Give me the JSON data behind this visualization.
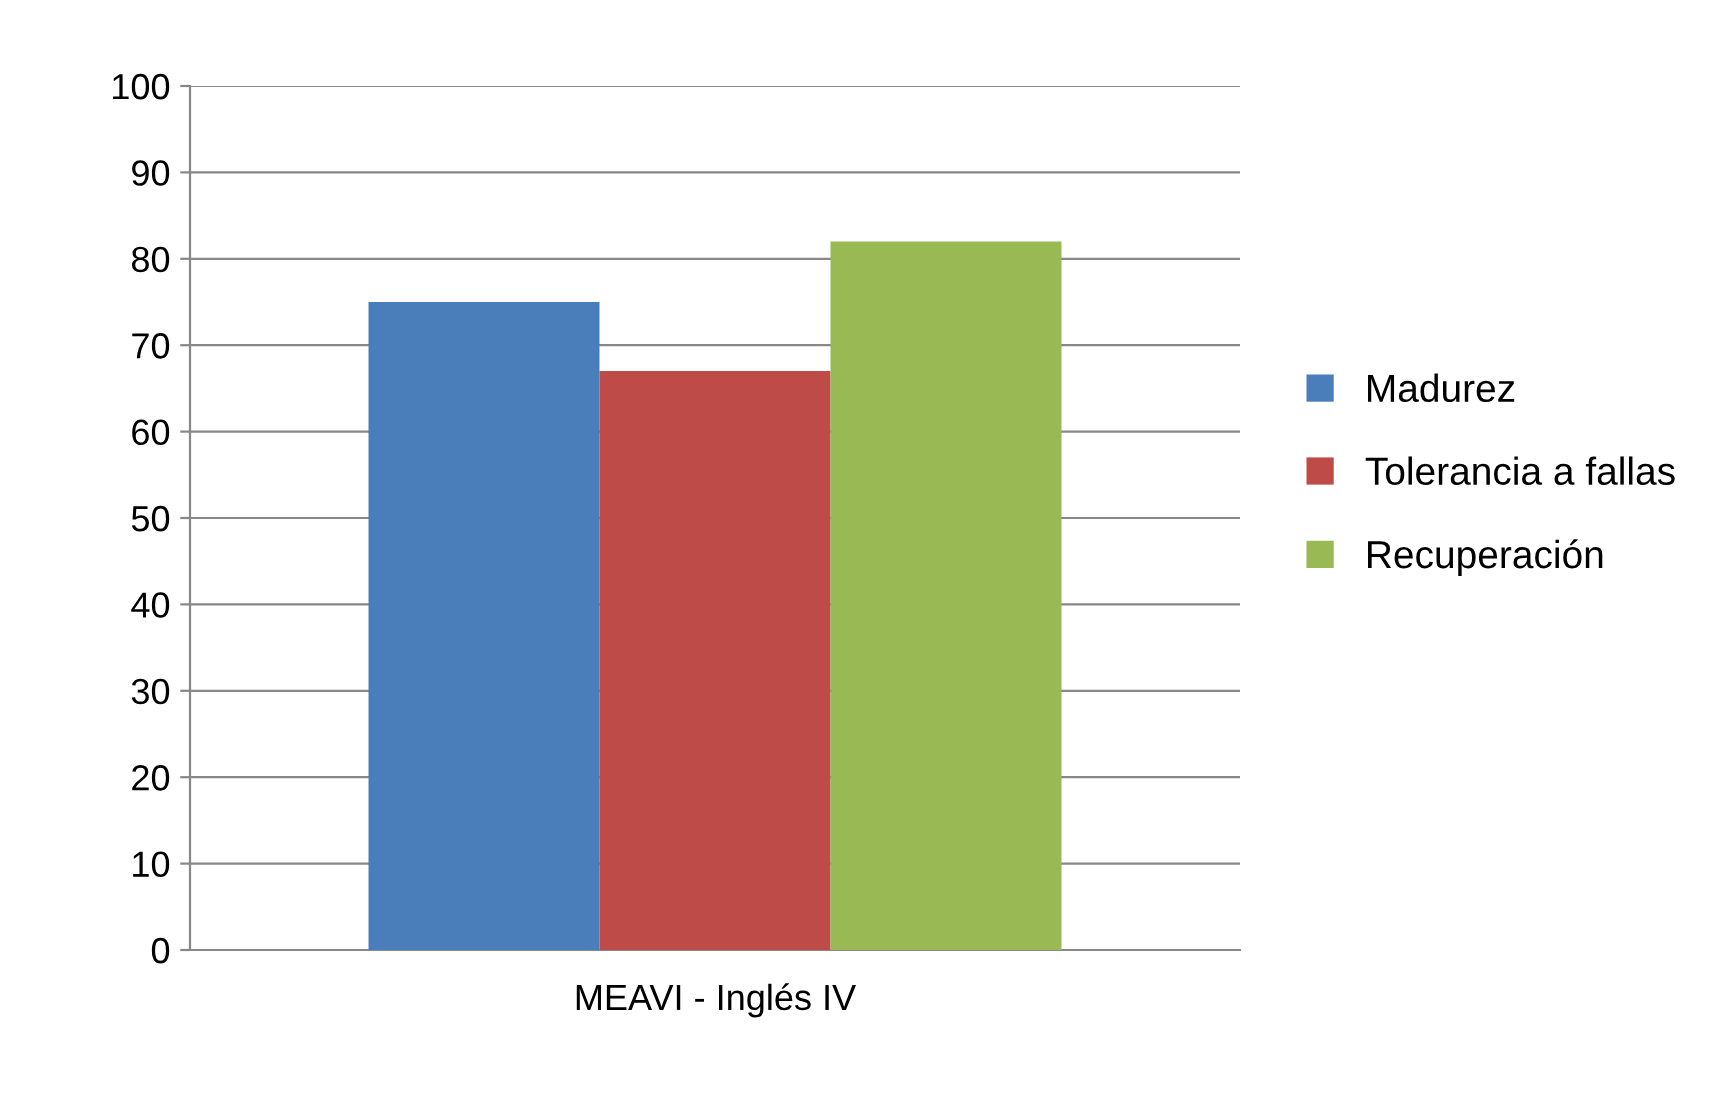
{
  "chart_data": {
    "type": "bar",
    "categories": [
      "MEAVI - Inglés IV"
    ],
    "series": [
      {
        "name": "Madurez",
        "color": "#4a7ebb",
        "values": [
          75
        ]
      },
      {
        "name": "Tolerancia a fallas",
        "color": "#be4b48",
        "values": [
          67
        ]
      },
      {
        "name": "Recuperación",
        "color": "#98b954",
        "values": [
          82
        ]
      }
    ],
    "ylim": [
      0,
      100
    ],
    "yticks": [
      0,
      10,
      20,
      30,
      40,
      50,
      60,
      70,
      80,
      90,
      100
    ],
    "grid": "y",
    "legend": "right"
  }
}
